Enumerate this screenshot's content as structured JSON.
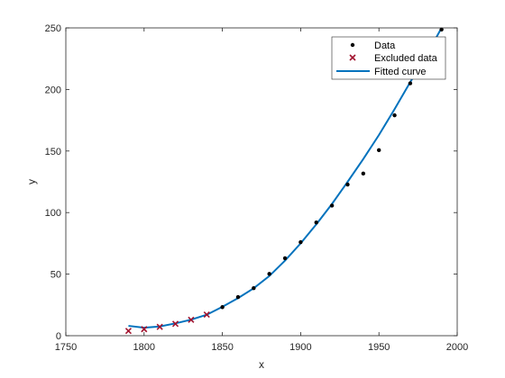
{
  "chart_data": {
    "type": "scatter",
    "title": "",
    "xlabel": "x",
    "ylabel": "y",
    "xlim": [
      1750,
      2000
    ],
    "ylim": [
      0,
      250
    ],
    "xticks": [
      "1750",
      "1800",
      "1850",
      "1900",
      "1950",
      "2000"
    ],
    "yticks": [
      "0",
      "50",
      "100",
      "150",
      "200",
      "250"
    ],
    "xtick_values": [
      1750,
      1800,
      1850,
      1900,
      1950,
      2000
    ],
    "ytick_values": [
      0,
      50,
      100,
      150,
      200,
      250
    ],
    "grid": false,
    "legend_position": "top-right",
    "series": [
      {
        "name": "Data",
        "kind": "marker-dot",
        "color": "#000000",
        "x": [
          1850,
          1860,
          1870,
          1880,
          1890,
          1900,
          1910,
          1920,
          1930,
          1940,
          1950,
          1960,
          1970,
          1980,
          1990
        ],
        "y": [
          23.2,
          31.4,
          38.6,
          50.2,
          62.9,
          76.0,
          92.0,
          105.7,
          122.8,
          131.7,
          150.7,
          179.0,
          205.0,
          226.5,
          248.7
        ]
      },
      {
        "name": "Excluded data",
        "kind": "marker-x",
        "color": "#a2142f",
        "x": [
          1790,
          1800,
          1810,
          1820,
          1830,
          1840
        ],
        "y": [
          3.9,
          5.3,
          7.2,
          9.6,
          12.9,
          17.1
        ]
      },
      {
        "name": "Fitted curve",
        "kind": "line",
        "color": "#0072bd",
        "x": [
          1790,
          1800,
          1810,
          1820,
          1830,
          1840,
          1850,
          1860,
          1870,
          1880,
          1890,
          1900,
          1910,
          1920,
          1930,
          1940,
          1950,
          1960,
          1970,
          1980,
          1990
        ],
        "y": [
          8,
          6.5,
          7.5,
          10,
          13,
          17,
          23.5,
          30.5,
          38.5,
          48.5,
          61,
          75,
          90.5,
          107,
          125,
          143.5,
          163,
          184,
          206,
          227,
          250
        ]
      }
    ]
  }
}
